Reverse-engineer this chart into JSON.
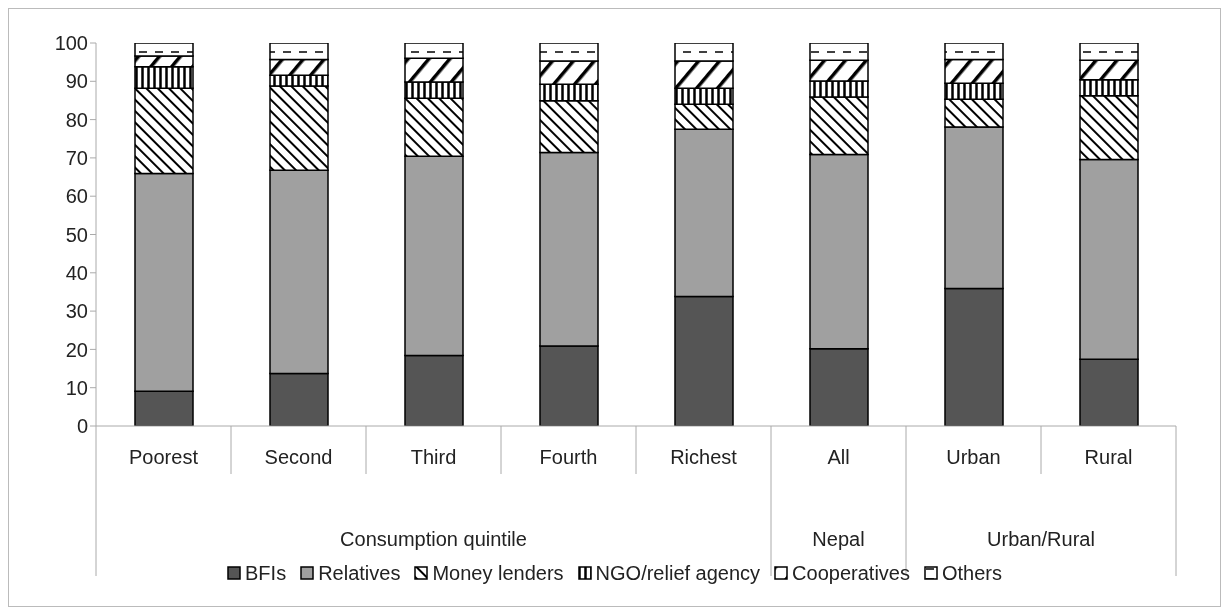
{
  "chart_data": {
    "type": "bar",
    "stacked": true,
    "categories": [
      "Poorest",
      "Second",
      "Third",
      "Fourth",
      "Richest",
      "All",
      "Urban",
      "Rural"
    ],
    "series": [
      {
        "name": "BFIs",
        "color": "#555555",
        "values": [
          9.1,
          13.7,
          18.4,
          20.9,
          33.8,
          20.2,
          35.9,
          17.4
        ]
      },
      {
        "name": "Relatives",
        "color": "#a0a0a0",
        "values": [
          56.8,
          53.1,
          52.0,
          50.5,
          43.7,
          50.7,
          42.2,
          52.2
        ]
      },
      {
        "name": "Money lenders",
        "color": "#000000",
        "values": [
          22.3,
          22.0,
          15.2,
          13.5,
          6.5,
          15.0,
          7.2,
          16.6
        ]
      },
      {
        "name": "NGO/relief agency",
        "color": "#000000",
        "values": [
          5.6,
          2.8,
          4.2,
          4.3,
          4.2,
          4.2,
          4.2,
          4.2
        ]
      },
      {
        "name": "Cooperatives",
        "color": "#000000",
        "values": [
          2.8,
          4.1,
          6.2,
          6.1,
          7.1,
          5.4,
          6.2,
          5.1
        ]
      },
      {
        "name": "Others",
        "color": "#000000",
        "values": [
          3.4,
          4.3,
          4.0,
          4.7,
          4.7,
          4.5,
          4.3,
          4.5
        ]
      }
    ],
    "annotations": [
      "Consumption quintile",
      "Nepal",
      "Urban/Rural"
    ],
    "ylim": [
      0,
      100
    ],
    "yticks": [
      0,
      10,
      20,
      30,
      40,
      50,
      60,
      70,
      80,
      90,
      100
    ],
    "grid": false,
    "legend": "bottom"
  }
}
